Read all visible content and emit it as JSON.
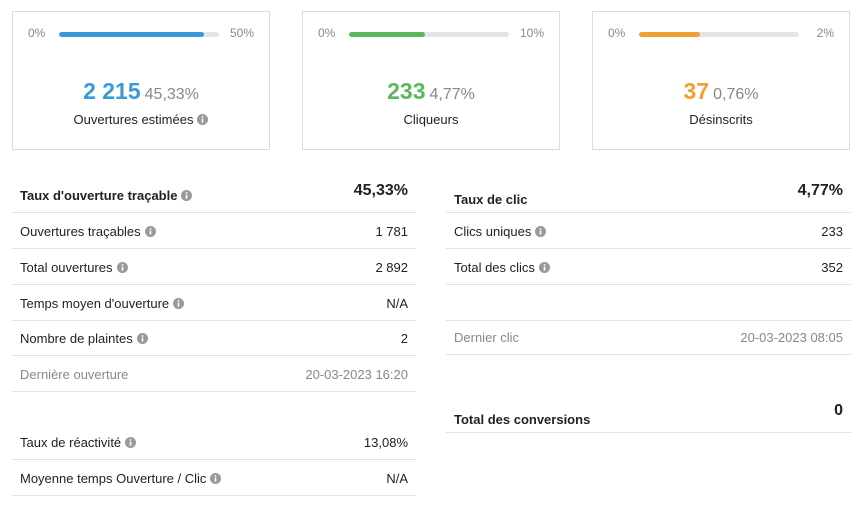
{
  "cards": [
    {
      "scale": [
        {
          "value": 0,
          "label": "0%"
        },
        {
          "value": 50,
          "label": "50%"
        }
      ],
      "count": "2 215",
      "rate": {
        "value": 45.33,
        "label": "45,33%"
      },
      "label": "Ouvertures estimées",
      "color": "#3a9ad9"
    },
    {
      "scale": [
        {
          "value": 0,
          "label": "0%"
        },
        {
          "value": 10,
          "label": "10%"
        }
      ],
      "count": "233",
      "rate": {
        "value": 4.77,
        "label": "4,77%"
      },
      "label": "Cliqueurs",
      "color": "#5cb85c"
    },
    {
      "scale": [
        {
          "value": 0,
          "label": "0%"
        },
        {
          "value": 2,
          "label": "2%"
        }
      ],
      "count": "37",
      "rate": {
        "value": 0.76,
        "label": "0,76%"
      },
      "label": "Désinscrits",
      "color": "#f0a030"
    }
  ],
  "opens": {
    "title": "Taux d'ouverture traçable",
    "value": "45,33%",
    "rows": [
      {
        "label": "Ouvertures traçables",
        "value": "1 781"
      },
      {
        "label": "Total ouvertures",
        "value": "2 892"
      },
      {
        "label": "Temps moyen d'ouverture",
        "value": "N/A"
      },
      {
        "label": "Nombre de plaintes",
        "value": "2"
      },
      {
        "label": "Dernière ouverture",
        "value": "20-03-2023 16:20"
      }
    ]
  },
  "reactivity": [
    {
      "label": "Taux de réactivité",
      "value": "13,08%"
    },
    {
      "label": "Moyenne temps Ouverture / Clic",
      "value": "N/A"
    }
  ],
  "clicks": {
    "title": "Taux de clic",
    "value": "4,77%",
    "rows": [
      {
        "label": "Clics uniques",
        "value": "233"
      },
      {
        "label": "Total des clics",
        "value": "352"
      },
      {
        "label": "Dernier clic",
        "value": "20-03-2023 08:05"
      }
    ]
  },
  "conversions": {
    "title": "Total des conversions",
    "value": "0"
  }
}
